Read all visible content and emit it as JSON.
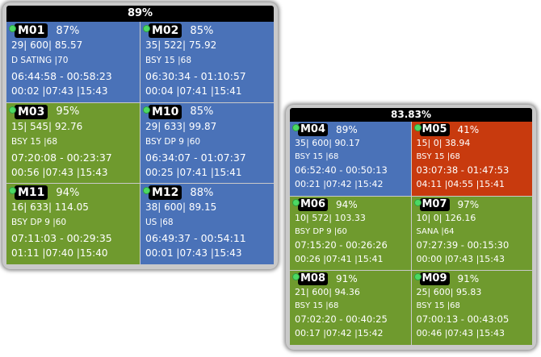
{
  "panels": [
    {
      "header": "89%",
      "cells": [
        {
          "id": "M01",
          "pct": "87%",
          "l1": "29| 600| 85.57",
          "l2": "D SATING  |70",
          "l3": "06:44:58 - 00:58:23",
          "l4": "00:02 |07:43 |15:43",
          "color": "blue"
        },
        {
          "id": "M02",
          "pct": "85%",
          "l1": "35| 522| 75.92",
          "l2": "BSY 15  |68",
          "l3": "06:30:34 - 01:10:57",
          "l4": "00:04 |07:41 |15:41",
          "color": "blue"
        },
        {
          "id": "M03",
          "pct": "95%",
          "l1": "15| 545| 92.76",
          "l2": "BSY 15  |68",
          "l3": "07:20:08 - 00:23:37",
          "l4": "00:56 |07:43 |15:43",
          "color": "green"
        },
        {
          "id": "M10",
          "pct": "85%",
          "l1": "29| 633| 99.87",
          "l2": "BSY DP 9  |60",
          "l3": "06:34:07 - 01:07:37",
          "l4": "00:25 |07:41 |15:41",
          "color": "blue"
        },
        {
          "id": "M11",
          "pct": "94%",
          "l1": "16| 633| 114.05",
          "l2": "BSY DP 9  |60",
          "l3": "07:11:03 - 00:29:35",
          "l4": "01:11 |07:40 |15:40",
          "color": "green"
        },
        {
          "id": "M12",
          "pct": "88%",
          "l1": "38| 600| 89.15",
          "l2": "US  |68",
          "l3": "06:49:37 - 00:54:11",
          "l4": "00:01 |07:43 |15:43",
          "color": "blue"
        }
      ]
    },
    {
      "header": "83.83%",
      "cells": [
        {
          "id": "M04",
          "pct": "89%",
          "l1": "35| 600| 90.17",
          "l2": "BSY 15  |68",
          "l3": "06:52:40 - 00:50:13",
          "l4": "00:21 |07:42 |15:42",
          "color": "blue"
        },
        {
          "id": "M05",
          "pct": "41%",
          "l1": "15| 0| 38.94",
          "l2": "BSY 15  |68",
          "l3": "03:07:38 - 01:47:53",
          "l4": "04:11 |04:55 |15:41",
          "color": "red"
        },
        {
          "id": "M06",
          "pct": "94%",
          "l1": "10| 572| 103.33",
          "l2": "BSY DP 9  |60",
          "l3": "07:15:20 - 00:26:26",
          "l4": "00:26 |07:41 |15:41",
          "color": "green"
        },
        {
          "id": "M07",
          "pct": "97%",
          "l1": "10| 0| 126.16",
          "l2": "SANA  |64",
          "l3": "07:27:39 - 00:15:30",
          "l4": "00:00 |07:43 |15:43",
          "color": "green"
        },
        {
          "id": "M08",
          "pct": "91%",
          "l1": "21| 600| 94.36",
          "l2": "BSY 15  |68",
          "l3": "07:02:20 - 00:40:25",
          "l4": "00:17 |07:42 |15:42",
          "color": "green"
        },
        {
          "id": "M09",
          "pct": "91%",
          "l1": "25| 600| 95.83",
          "l2": "BSY 15  |68",
          "l3": "07:00:13 - 00:43:05",
          "l4": "00:46 |07:43 |15:43",
          "color": "green"
        }
      ]
    }
  ]
}
